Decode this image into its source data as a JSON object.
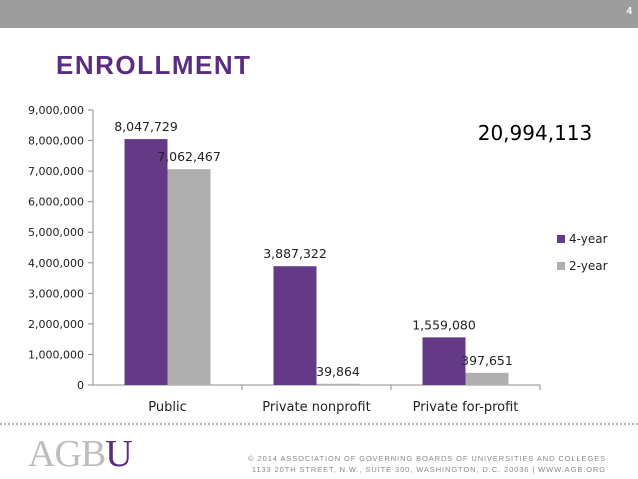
{
  "page_number": "4",
  "title": "ENROLLMENT",
  "total_annotation": "20,994,113",
  "logo": {
    "text": "AGB",
    "accent": "U"
  },
  "footer": {
    "line1": "© 2014 ASSOCIATION OF GOVERNING BOARDS OF UNIVERSITIES AND COLLEGES",
    "line2": "1133 20TH STREET, N.W., SUITE 300, WASHINGTON, D.C. 20036  |  WWW.AGB.ORG"
  },
  "colors": {
    "four_year": "#643a87",
    "two_year": "#afafaf",
    "title": "#5b2d82",
    "top_bar": "#9d9d9d"
  },
  "chart_data": {
    "type": "bar",
    "title": "",
    "xlabel": "",
    "ylabel": "",
    "categories": [
      "Public",
      "Private nonprofit",
      "Private for-profit"
    ],
    "series": [
      {
        "name": "4-year",
        "values": [
          8047729,
          3887322,
          1559080
        ],
        "labels": [
          "8,047,729",
          "3,887,322",
          "1,559,080"
        ]
      },
      {
        "name": "2-year",
        "values": [
          7062467,
          39864,
          397651
        ],
        "labels": [
          "7,062,467",
          "39,864",
          "397,651"
        ]
      }
    ],
    "ylim": [
      0,
      9000000
    ],
    "yticks": [
      0,
      1000000,
      2000000,
      3000000,
      4000000,
      5000000,
      6000000,
      7000000,
      8000000,
      9000000
    ],
    "ytick_labels": [
      "0",
      "1,000,000",
      "2,000,000",
      "3,000,000",
      "4,000,000",
      "5,000,000",
      "6,000,000",
      "7,000,000",
      "8,000,000",
      "9,000,000"
    ],
    "grid": false,
    "legend_position": "right"
  }
}
